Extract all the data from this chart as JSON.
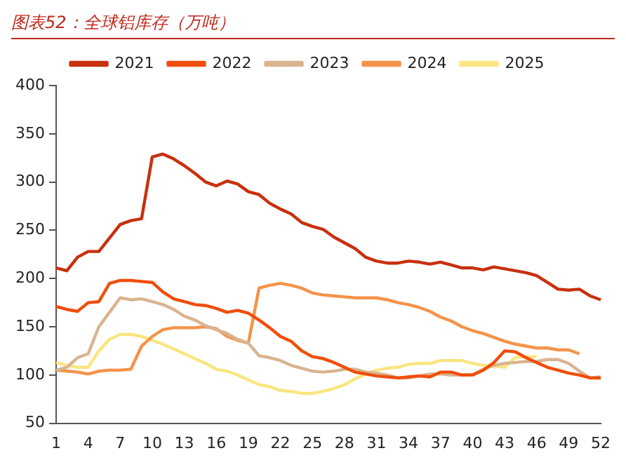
{
  "chart_data": {
    "type": "line",
    "title": "图表52：全球铝库存（万吨）",
    "categories": [
      "1",
      null,
      null,
      "4",
      null,
      null,
      "7",
      null,
      null,
      "10",
      null,
      null,
      "13",
      null,
      null,
      "16",
      null,
      null,
      "19",
      null,
      null,
      "22",
      null,
      null,
      "25",
      null,
      null,
      "28",
      null,
      null,
      "31",
      null,
      null,
      "34",
      null,
      null,
      "37",
      null,
      null,
      "40",
      null,
      null,
      "43",
      null,
      null,
      "46",
      null,
      null,
      "49",
      null,
      null,
      "52"
    ],
    "series": [
      {
        "name": "2021",
        "color": "#c8300f",
        "values": [
          211,
          208,
          222,
          228,
          228,
          242,
          256,
          260,
          262,
          326,
          329,
          324,
          317,
          309,
          300,
          296,
          301,
          298,
          290,
          287,
          278,
          272,
          267,
          258,
          254,
          251,
          243,
          237,
          231,
          222,
          218,
          216,
          216,
          218,
          217,
          215,
          217,
          214,
          211,
          211,
          209,
          212,
          210,
          208,
          206,
          203,
          196,
          189,
          188,
          189,
          182,
          178
        ]
      },
      {
        "name": "2022",
        "color": "#f04e0c",
        "values": [
          171,
          168,
          166,
          175,
          176,
          195,
          198,
          198,
          197,
          196,
          186,
          179,
          176,
          173,
          172,
          169,
          165,
          167,
          164,
          157,
          149,
          140,
          135,
          125,
          119,
          117,
          113,
          108,
          103,
          101,
          99,
          98,
          97,
          98,
          99,
          98,
          103,
          103,
          100,
          100,
          105,
          113,
          125,
          124,
          118,
          113,
          108,
          105,
          102,
          100,
          97,
          97
        ]
      },
      {
        "name": "2023",
        "color": "#d9b48f",
        "values": [
          105,
          108,
          118,
          122,
          150,
          165,
          180,
          178,
          179,
          176,
          173,
          168,
          161,
          157,
          151,
          147,
          143,
          137,
          133,
          120,
          118,
          115,
          110,
          107,
          104,
          103,
          104,
          106,
          106,
          103,
          102,
          100,
          97,
          97,
          99,
          101,
          101,
          100,
          100,
          100,
          106,
          110,
          112,
          113,
          114,
          114,
          116,
          116,
          112,
          104,
          97,
          98
        ]
      },
      {
        "name": "2024",
        "color": "#f4934a",
        "values": [
          105,
          104,
          103,
          101,
          104,
          105,
          105,
          106,
          130,
          140,
          147,
          149,
          149,
          149,
          150,
          148,
          140,
          136,
          133,
          190,
          193,
          195,
          193,
          190,
          185,
          183,
          182,
          181,
          180,
          180,
          180,
          178,
          175,
          173,
          170,
          166,
          160,
          156,
          150,
          146,
          143,
          139,
          135,
          132,
          130,
          128,
          128,
          126,
          126,
          122,
          null,
          null
        ]
      },
      {
        "name": "2025",
        "color": "#fbe57f",
        "values": [
          113,
          110,
          108,
          108,
          125,
          137,
          142,
          142,
          140,
          136,
          132,
          127,
          122,
          117,
          112,
          106,
          104,
          100,
          95,
          90,
          88,
          84,
          83,
          81,
          81,
          83,
          86,
          90,
          96,
          101,
          105,
          107,
          108,
          111,
          112,
          112,
          115,
          115,
          115,
          112,
          110,
          109,
          108,
          118,
          119,
          119,
          null,
          null,
          null,
          null,
          null,
          null
        ]
      }
    ],
    "ylim": [
      50,
      400
    ],
    "yticks": [
      50,
      100,
      150,
      200,
      250,
      300,
      350,
      400
    ],
    "grid": false,
    "legend": "top",
    "marker": "none",
    "line_style": "solid"
  }
}
